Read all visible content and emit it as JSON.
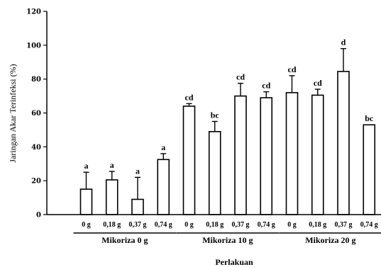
{
  "chart_data": {
    "type": "bar",
    "ylabel": "Jaringan Akar Terinfeksi (%)",
    "xlabel": "Perlakuan",
    "ylim": [
      0,
      120
    ],
    "yticks": [
      "0",
      "20",
      "40",
      "60",
      "80",
      "100",
      "120"
    ],
    "grid": false,
    "categories": [
      "0 g",
      "0,18 g",
      "0,37 g",
      "0,74 g",
      "0 g",
      "0,18 g",
      "0,37 g",
      "0,74 g",
      "0 g",
      "0,18 g",
      "0,37 g",
      "0,74 g"
    ],
    "groups": [
      {
        "label": "Mikoriza 0 g",
        "start": 0,
        "end": 3
      },
      {
        "label": "Mikoriza 10 g",
        "start": 4,
        "end": 7
      },
      {
        "label": "Mikoriza 20 g",
        "start": 8,
        "end": 11
      }
    ],
    "values": [
      15,
      20.5,
      9,
      32.5,
      64,
      49,
      70,
      69,
      72,
      70.5,
      84.5,
      53
    ],
    "errors": [
      10,
      5,
      13,
      3.5,
      1.5,
      6,
      7.5,
      3.5,
      10,
      3.5,
      13.5,
      0
    ],
    "letters": [
      "a",
      "a",
      "a",
      "a",
      "cd",
      "bc",
      "cd",
      "cd",
      "cd",
      "cd",
      "d",
      "bc"
    ]
  }
}
